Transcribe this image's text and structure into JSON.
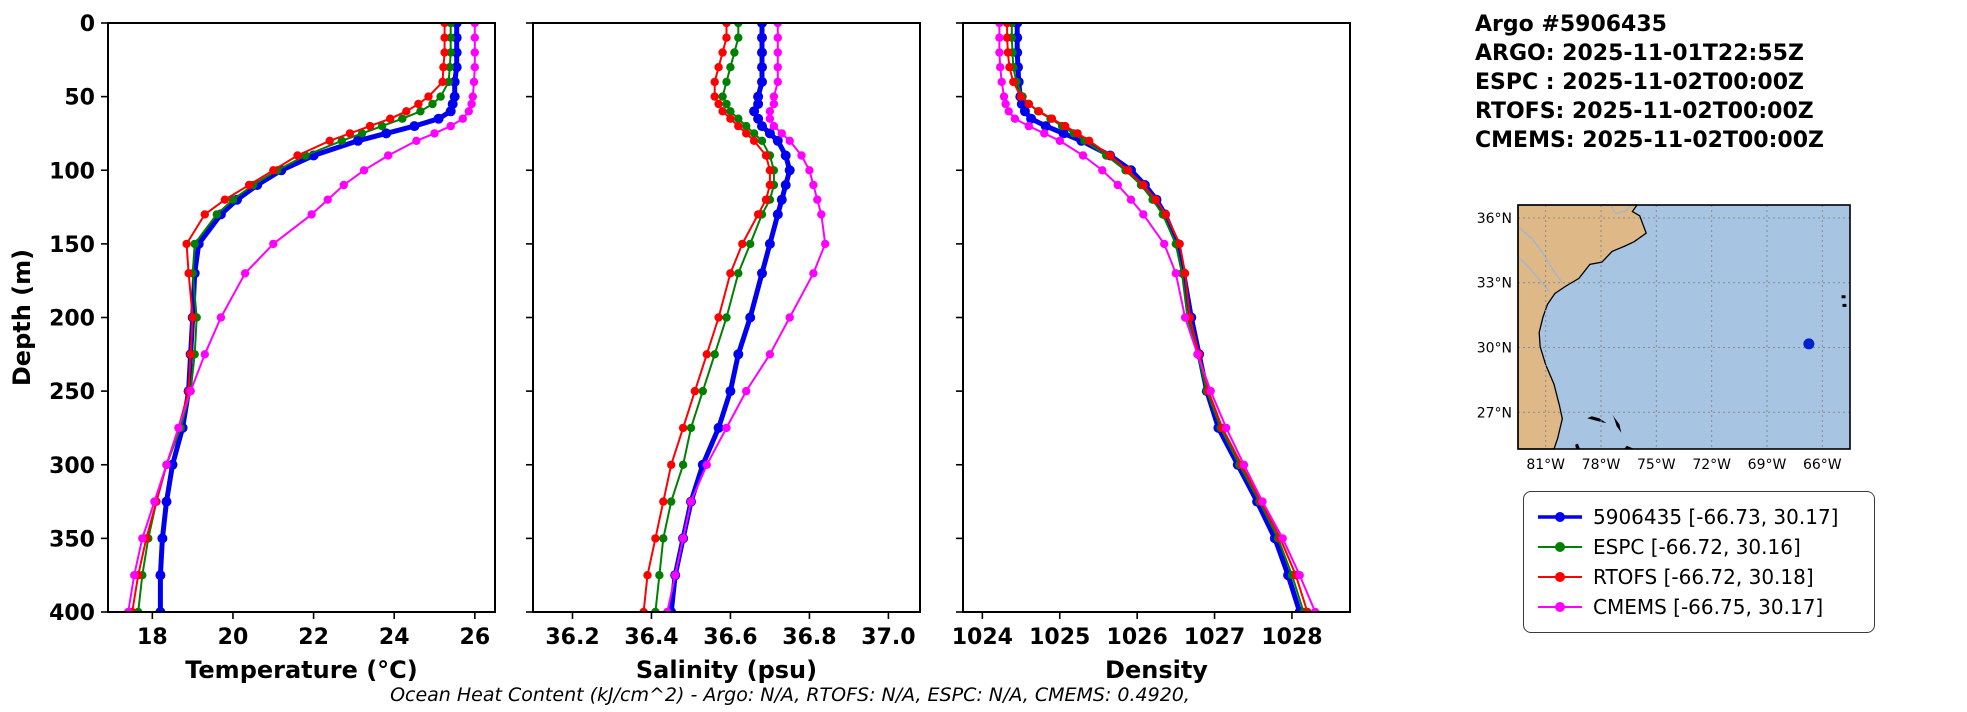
{
  "header": {
    "lines": [
      "Argo #5906435",
      "ARGO: 2025-11-01T22:55Z",
      "ESPC : 2025-11-02T00:00Z",
      "RTOFS: 2025-11-02T00:00Z",
      "CMEMS: 2025-11-02T00:00Z"
    ]
  },
  "footer": {
    "text": "Ocean Heat Content (kJ/cm^2) - Argo: N/A,  RTOFS: N/A,  ESPC: N/A,  CMEMS: 0.4920,"
  },
  "legend": {
    "items": [
      {
        "label": "5906435 [-66.73, 30.17]",
        "color": "#0000ee",
        "linewidth": 3.5
      },
      {
        "label": "ESPC [-66.72, 30.16]",
        "color": "#008000",
        "linewidth": 2
      },
      {
        "label": "RTOFS [-66.72, 30.18]",
        "color": "#ff0000",
        "linewidth": 2
      },
      {
        "label": "CMEMS [-66.75, 30.17]",
        "color": "#ff00ff",
        "linewidth": 2
      }
    ]
  },
  "map": {
    "extent": {
      "lon_min": -82.5,
      "lon_max": -64.5,
      "lat_min": 25.3,
      "lat_max": 36.6
    },
    "lat_ticks": [
      {
        "value": 36,
        "label": "36°N"
      },
      {
        "value": 33,
        "label": "33°N"
      },
      {
        "value": 30,
        "label": "30°N"
      },
      {
        "value": 27,
        "label": "27°N"
      }
    ],
    "lon_ticks": [
      {
        "value": -81,
        "label": "81°W"
      },
      {
        "value": -78,
        "label": "78°W"
      },
      {
        "value": -75,
        "label": "75°W"
      },
      {
        "value": -72,
        "label": "72°W"
      },
      {
        "value": -69,
        "label": "69°W"
      },
      {
        "value": -66,
        "label": "66°W"
      }
    ],
    "marker": {
      "lon": -66.73,
      "lat": 30.17,
      "color": "#0022cc"
    },
    "colors": {
      "land": "#deb887",
      "ocean": "#a7c4e2",
      "coast": "#000000",
      "grid": "#8a8a8a",
      "river": "#9db8d2",
      "island": "#000000"
    }
  },
  "chart_data": {
    "type": "line",
    "title": "",
    "grid": false,
    "legend_position": "right-outside",
    "y_axis": {
      "label": "Depth (m)",
      "range": [
        0,
        400
      ],
      "inverted": true,
      "ticks": [
        0,
        50,
        100,
        150,
        200,
        250,
        300,
        350,
        400
      ]
    },
    "depths": [
      0,
      10,
      20,
      30,
      40,
      50,
      55,
      60,
      65,
      70,
      75,
      80,
      90,
      100,
      110,
      120,
      130,
      150,
      170,
      200,
      225,
      250,
      275,
      300,
      325,
      350,
      375,
      400
    ],
    "panels": [
      {
        "key": "temperature",
        "xlabel": "Temperature (°C)",
        "xrange": [
          16.9,
          26.5
        ],
        "xticks": [
          18,
          20,
          22,
          24,
          26
        ],
        "xtick_labels": [
          "18",
          "20",
          "22",
          "24",
          "26"
        ]
      },
      {
        "key": "salinity",
        "xlabel": "Salinity (psu)",
        "xrange": [
          36.1,
          37.08
        ],
        "xticks": [
          36.2,
          36.4,
          36.6,
          36.8,
          37.0
        ],
        "xtick_labels": [
          "36.2",
          "36.4",
          "36.6",
          "36.8",
          "37.0"
        ]
      },
      {
        "key": "density",
        "xlabel": "Density",
        "xrange": [
          1023.75,
          1028.75
        ],
        "xticks": [
          1024,
          1025,
          1026,
          1027,
          1028
        ],
        "xtick_labels": [
          "1024",
          "1025",
          "1026",
          "1027",
          "1028"
        ]
      }
    ],
    "series": [
      {
        "name": "5906435",
        "color": "#0000ee",
        "linewidth": 5,
        "markersize": 5,
        "values": {
          "temperature": [
            25.55,
            25.55,
            25.55,
            25.55,
            25.5,
            25.5,
            25.45,
            25.4,
            25.1,
            24.5,
            23.8,
            23.1,
            22.0,
            21.2,
            20.6,
            20.1,
            19.7,
            19.15,
            19.05,
            19.0,
            18.95,
            18.9,
            18.75,
            18.5,
            18.35,
            18.25,
            18.2,
            18.2
          ],
          "salinity": [
            36.68,
            36.68,
            36.68,
            36.68,
            36.68,
            36.67,
            36.67,
            36.66,
            36.67,
            36.68,
            36.7,
            36.72,
            36.74,
            36.75,
            36.74,
            36.73,
            36.72,
            36.7,
            36.68,
            36.65,
            36.62,
            36.6,
            36.57,
            36.53,
            36.5,
            36.48,
            36.46,
            36.45
          ],
          "density": [
            1024.45,
            1024.45,
            1024.45,
            1024.46,
            1024.47,
            1024.49,
            1024.51,
            1024.55,
            1024.63,
            1024.82,
            1025.05,
            1025.28,
            1025.65,
            1025.92,
            1026.1,
            1026.25,
            1026.36,
            1026.52,
            1026.6,
            1026.7,
            1026.8,
            1026.9,
            1027.05,
            1027.3,
            1027.55,
            1027.78,
            1027.95,
            1028.1
          ]
        }
      },
      {
        "name": "ESPC",
        "color": "#008000",
        "linewidth": 2,
        "markersize": 4.2,
        "values": {
          "temperature": [
            25.4,
            25.4,
            25.4,
            25.38,
            25.35,
            25.15,
            24.95,
            24.65,
            24.2,
            23.7,
            23.2,
            22.7,
            21.8,
            21.1,
            20.5,
            20.0,
            19.6,
            19.05,
            19.0,
            19.1,
            19.05,
            18.95,
            18.7,
            18.35,
            18.1,
            17.9,
            17.75,
            17.65
          ],
          "salinity": [
            36.62,
            36.62,
            36.61,
            36.6,
            36.59,
            36.58,
            36.59,
            36.6,
            36.62,
            36.64,
            36.66,
            36.68,
            36.7,
            36.71,
            36.71,
            36.7,
            36.68,
            36.65,
            36.62,
            36.59,
            36.56,
            36.53,
            36.5,
            36.48,
            36.45,
            36.43,
            36.42,
            36.41
          ],
          "density": [
            1024.38,
            1024.38,
            1024.39,
            1024.4,
            1024.44,
            1024.52,
            1024.6,
            1024.72,
            1024.88,
            1025.03,
            1025.18,
            1025.32,
            1025.6,
            1025.85,
            1026.05,
            1026.2,
            1026.33,
            1026.5,
            1026.58,
            1026.65,
            1026.78,
            1026.9,
            1027.08,
            1027.32,
            1027.58,
            1027.82,
            1028.0,
            1028.15
          ]
        }
      },
      {
        "name": "RTOFS",
        "color": "#ff0000",
        "linewidth": 2,
        "markersize": 4.2,
        "values": {
          "temperature": [
            25.25,
            25.25,
            25.25,
            25.22,
            25.2,
            24.85,
            24.6,
            24.3,
            23.9,
            23.4,
            22.9,
            22.4,
            21.6,
            21.0,
            20.4,
            19.8,
            19.3,
            18.85,
            18.9,
            19.0,
            18.95,
            18.9,
            18.65,
            18.35,
            18.1,
            17.85,
            17.65,
            17.5
          ],
          "salinity": [
            36.59,
            36.59,
            36.58,
            36.57,
            36.56,
            36.56,
            36.57,
            36.58,
            36.6,
            36.62,
            36.64,
            36.66,
            36.69,
            36.7,
            36.7,
            36.69,
            36.67,
            36.63,
            36.6,
            36.57,
            36.54,
            36.51,
            36.48,
            36.45,
            36.43,
            36.41,
            36.39,
            36.38
          ],
          "density": [
            1024.32,
            1024.32,
            1024.33,
            1024.35,
            1024.4,
            1024.5,
            1024.6,
            1024.73,
            1024.9,
            1025.07,
            1025.23,
            1025.38,
            1025.65,
            1025.88,
            1026.08,
            1026.24,
            1026.37,
            1026.55,
            1026.62,
            1026.68,
            1026.8,
            1026.92,
            1027.1,
            1027.35,
            1027.6,
            1027.85,
            1028.05,
            1028.2
          ]
        }
      },
      {
        "name": "CMEMS",
        "color": "#ff00ff",
        "linewidth": 2,
        "markersize": 4.2,
        "values": {
          "temperature": [
            26.0,
            26.0,
            26.0,
            26.0,
            25.98,
            25.95,
            25.92,
            25.85,
            25.7,
            25.4,
            25.0,
            24.55,
            23.85,
            23.25,
            22.75,
            22.35,
            21.95,
            21.0,
            20.3,
            19.7,
            19.3,
            18.95,
            18.65,
            18.35,
            18.05,
            17.75,
            17.55,
            17.4
          ],
          "salinity": [
            36.72,
            36.72,
            36.72,
            36.72,
            36.72,
            36.71,
            36.71,
            36.7,
            36.7,
            36.71,
            36.73,
            36.75,
            36.78,
            36.8,
            36.81,
            36.82,
            36.83,
            36.84,
            36.81,
            36.75,
            36.7,
            36.64,
            36.59,
            36.54,
            36.5,
            36.48,
            36.46,
            36.44
          ],
          "density": [
            1024.22,
            1024.22,
            1024.22,
            1024.23,
            1024.25,
            1024.28,
            1024.3,
            1024.34,
            1024.42,
            1024.6,
            1024.8,
            1025.0,
            1025.3,
            1025.55,
            1025.75,
            1025.92,
            1026.08,
            1026.35,
            1026.5,
            1026.62,
            1026.78,
            1026.95,
            1027.15,
            1027.38,
            1027.62,
            1027.88,
            1028.1,
            1028.3
          ]
        }
      }
    ]
  }
}
